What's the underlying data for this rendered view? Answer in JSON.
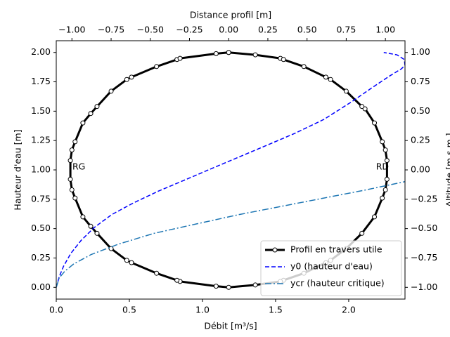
{
  "chart_data": {
    "type": "line",
    "xlabel": "Débit [m³/s]",
    "ylabel": "Hauteur d'eau [m]",
    "x2label": "Distance profil [m]",
    "y2label": "Altitude [m s.m.]",
    "xlim": [
      0,
      2.385
    ],
    "ylim": [
      -0.1,
      2.1
    ],
    "x2lim": [
      -1.1,
      1.125
    ],
    "y2lim": [
      -1.1,
      1.1
    ],
    "xticks": [
      {
        "value": 0,
        "label": "0.0"
      },
      {
        "value": 0.5,
        "label": "0.5"
      },
      {
        "value": 1,
        "label": "1.0"
      },
      {
        "value": 1.5,
        "label": "1.5"
      },
      {
        "value": 2,
        "label": "2.0"
      }
    ],
    "yticks": [
      {
        "value": 0,
        "label": "0.00"
      },
      {
        "value": 0.25,
        "label": "0.25"
      },
      {
        "value": 0.5,
        "label": "0.50"
      },
      {
        "value": 0.75,
        "label": "0.75"
      },
      {
        "value": 1,
        "label": "1.00"
      },
      {
        "value": 1.25,
        "label": "1.25"
      },
      {
        "value": 1.5,
        "label": "1.50"
      },
      {
        "value": 1.75,
        "label": "1.75"
      },
      {
        "value": 2,
        "label": "2.00"
      }
    ],
    "x2ticks": [
      {
        "value": -1,
        "label": "−1.00"
      },
      {
        "value": -0.75,
        "label": "−0.75"
      },
      {
        "value": -0.5,
        "label": "−0.50"
      },
      {
        "value": -0.25,
        "label": "−0.25"
      },
      {
        "value": 0,
        "label": "0.00"
      },
      {
        "value": 0.25,
        "label": "0.25"
      },
      {
        "value": 0.5,
        "label": "0.50"
      },
      {
        "value": 0.75,
        "label": "0.75"
      },
      {
        "value": 1,
        "label": "1.00"
      }
    ],
    "y2ticks": [
      {
        "value": -1,
        "label": "−1.00"
      },
      {
        "value": -0.75,
        "label": "−0.75"
      },
      {
        "value": -0.5,
        "label": "−0.50"
      },
      {
        "value": -0.25,
        "label": "−0.25"
      },
      {
        "value": 0,
        "label": "0.00"
      },
      {
        "value": 0.25,
        "label": "0.25"
      },
      {
        "value": 0.5,
        "label": "0.50"
      },
      {
        "value": 0.75,
        "label": "0.75"
      },
      {
        "value": 1,
        "label": "1.00"
      }
    ],
    "series": [
      {
        "name": "Profil en travers utile",
        "color": "#000000",
        "linestyle": "solid",
        "marker": "o",
        "axis": "y2",
        "x_axis": "x2",
        "x": [
          0,
          0.17,
          0.33,
          0.35,
          0.48,
          0.62,
          0.65,
          0.75,
          0.85,
          0.87,
          0.93,
          0.98,
          1.0,
          1.01,
          1.01,
          1.0,
          0.98,
          0.93,
          0.85,
          0.75,
          0.65,
          0.62,
          0.48,
          0.35,
          0.33,
          0.17,
          0,
          -0.08,
          -0.31,
          -0.33,
          -0.46,
          -0.62,
          -0.65,
          -0.75,
          -0.84,
          -0.88,
          -0.93,
          -0.98,
          -1.0,
          -1.01,
          -1.01,
          -1.0,
          -0.98,
          -0.93,
          -0.88,
          -0.84,
          -0.75,
          -0.65,
          -0.62,
          -0.46,
          -0.33,
          -0.31,
          -0.08,
          0
        ],
        "values": [
          1.0,
          0.98,
          0.95,
          0.94,
          0.88,
          0.79,
          0.77,
          0.67,
          0.54,
          0.52,
          0.4,
          0.24,
          0.17,
          0.08,
          -0.08,
          -0.17,
          -0.24,
          -0.4,
          -0.54,
          -0.67,
          -0.77,
          -0.79,
          -0.88,
          -0.94,
          -0.95,
          -0.98,
          -1.0,
          -0.99,
          -0.95,
          -0.94,
          -0.88,
          -0.79,
          -0.77,
          -0.67,
          -0.54,
          -0.48,
          -0.4,
          -0.24,
          -0.17,
          -0.08,
          0.08,
          0.17,
          0.24,
          0.4,
          0.48,
          0.54,
          0.67,
          0.77,
          0.79,
          0.88,
          0.94,
          0.95,
          0.99,
          1.0
        ]
      },
      {
        "name": "y0 (hauteur d'eau)",
        "color": "#0000ff",
        "linestyle": "dashed",
        "x": [
          0,
          0.02,
          0.05,
          0.1,
          0.17,
          0.26,
          0.38,
          0.53,
          0.7,
          0.89,
          1.06,
          1.25,
          1.44,
          1.63,
          1.83,
          2.02,
          2.16,
          2.28,
          2.36,
          2.385,
          2.38,
          2.33,
          2.24
        ],
        "values": [
          0,
          0.09,
          0.18,
          0.29,
          0.4,
          0.51,
          0.62,
          0.72,
          0.82,
          0.92,
          1.01,
          1.11,
          1.21,
          1.31,
          1.43,
          1.58,
          1.7,
          1.8,
          1.86,
          1.89,
          1.94,
          1.98,
          2.0
        ]
      },
      {
        "name": "ycr (hauteur critique)",
        "color": "#1f77b4",
        "linestyle": "dashdot",
        "x": [
          0,
          0.02,
          0.06,
          0.12,
          0.24,
          0.43,
          0.67,
          0.96,
          1.25,
          1.54,
          1.83,
          2.12,
          2.385
        ],
        "values": [
          0,
          0.08,
          0.14,
          0.2,
          0.28,
          0.37,
          0.46,
          0.54,
          0.62,
          0.69,
          0.76,
          0.83,
          0.9
        ]
      }
    ],
    "annotations": [
      "RG",
      "RD"
    ],
    "legend": "lower right"
  }
}
